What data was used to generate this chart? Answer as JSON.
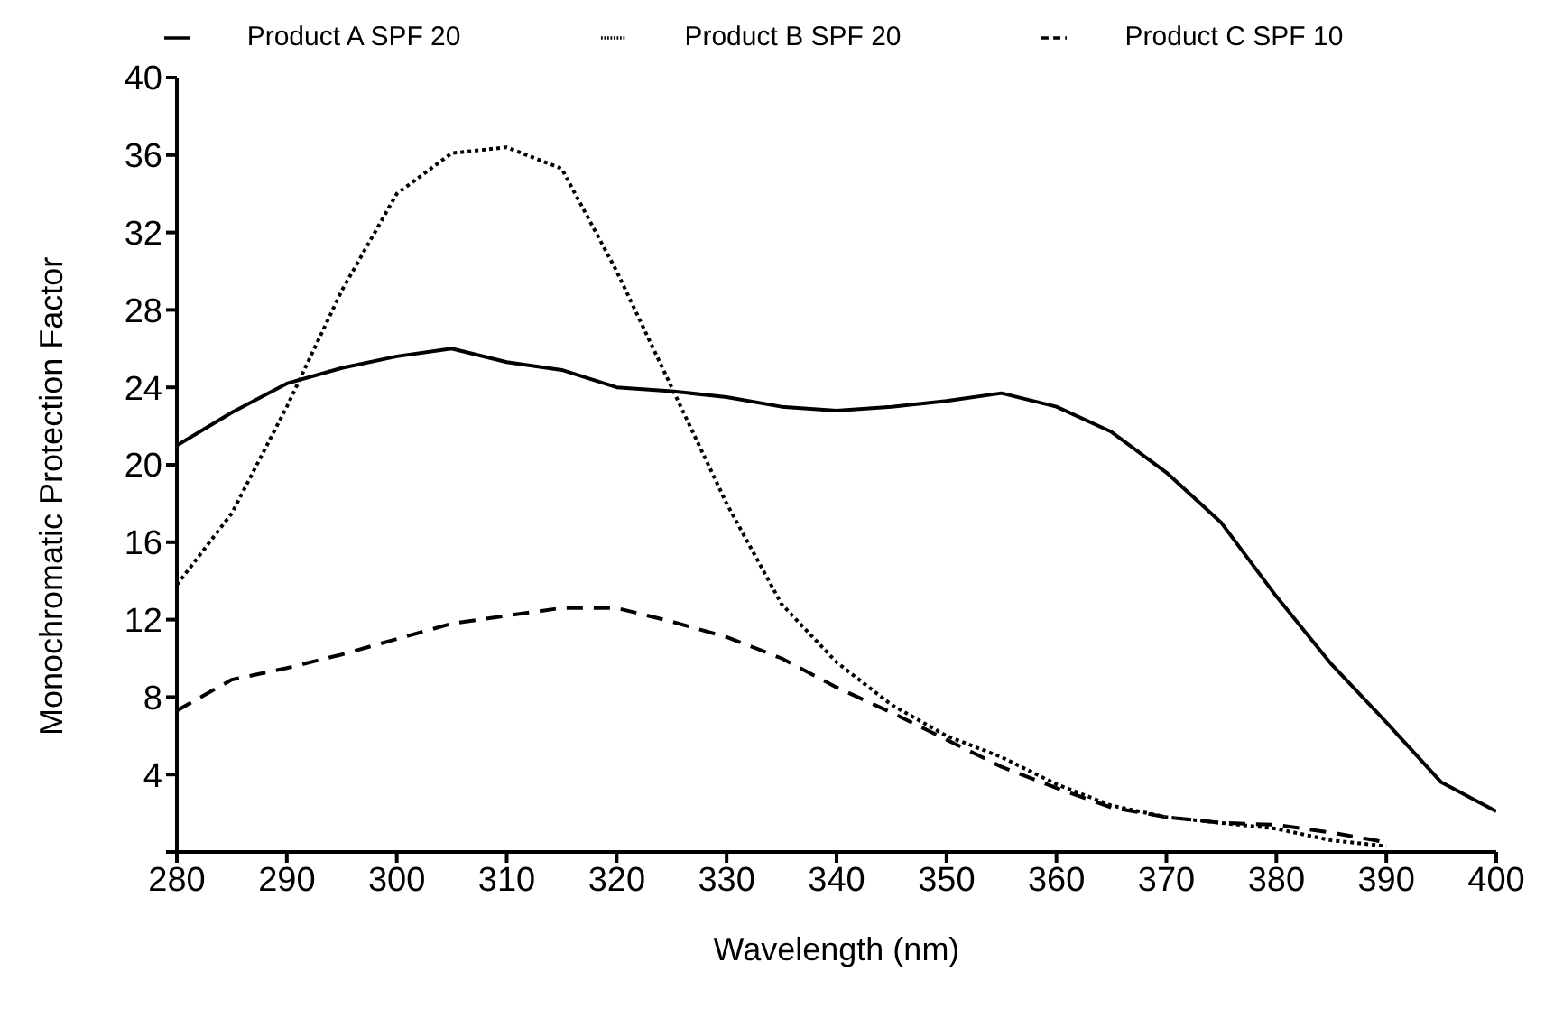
{
  "chart_data": {
    "type": "line",
    "xlabel": "Wavelength (nm)",
    "ylabel": "Monochromatic Protection Factor",
    "x": [
      280,
      285,
      290,
      295,
      300,
      305,
      310,
      315,
      320,
      325,
      330,
      335,
      340,
      345,
      350,
      355,
      360,
      365,
      370,
      375,
      380,
      385,
      390,
      395,
      400
    ],
    "series": [
      {
        "name": "Product A SPF 20",
        "color": "#000000",
        "line_style": "solid",
        "values": [
          21,
          22.7,
          24.2,
          25,
          25.6,
          26,
          25.3,
          24.9,
          24,
          23.8,
          23.5,
          23,
          22.8,
          23,
          23.3,
          23.7,
          23,
          21.7,
          19.6,
          17,
          13.2,
          9.7,
          6.7,
          3.6,
          2.1
        ]
      },
      {
        "name": "Product B SPF 20",
        "color": "#000000",
        "line_style": "dotted",
        "values": [
          13.8,
          17.5,
          23,
          29,
          34,
          36.1,
          36.4,
          35.3,
          30,
          24,
          18,
          12.8,
          9.8,
          7.6,
          6,
          4.9,
          3.5,
          2.4,
          1.8,
          1.5,
          1.2,
          0.6,
          0.3,
          null,
          null
        ]
      },
      {
        "name": "Product C SPF 10",
        "color": "#000000",
        "line_style": "dashed",
        "values": [
          7.3,
          8.9,
          9.5,
          10.2,
          11,
          11.8,
          12.2,
          12.6,
          12.6,
          11.9,
          11.1,
          10,
          8.5,
          7.2,
          5.8,
          4.4,
          3.3,
          2.3,
          1.8,
          1.5,
          1.4,
          1,
          0.5,
          null,
          null
        ]
      }
    ],
    "xlim": [
      280,
      400
    ],
    "xticks": [
      280,
      290,
      300,
      310,
      320,
      330,
      340,
      350,
      360,
      370,
      380,
      390,
      400
    ],
    "ylim": [
      0,
      40
    ],
    "yticks": [
      {
        "value": 0,
        "label": null
      },
      4,
      8,
      12,
      16,
      20,
      24,
      28,
      32,
      36,
      40
    ],
    "grid": false,
    "legend": "top",
    "marker": "none"
  }
}
